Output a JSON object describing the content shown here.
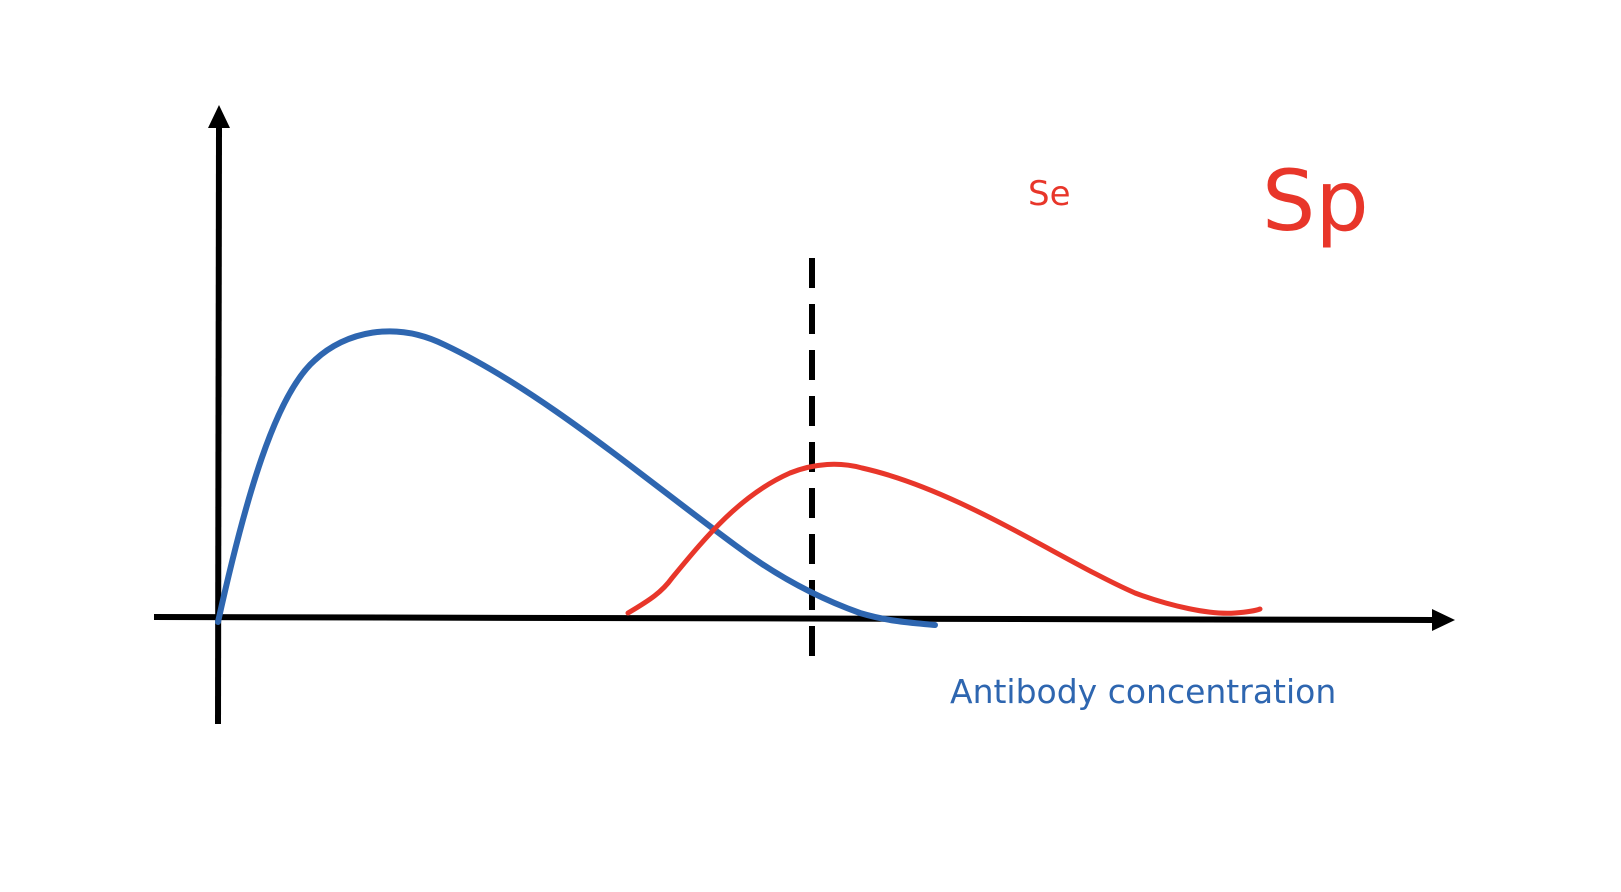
{
  "labels": {
    "se": "Se",
    "sp": "Sp",
    "x_axis": "Antibody concentration"
  },
  "colors": {
    "axis": "#000000",
    "blue_curve": "#2e66b0",
    "red_curve": "#e8362a",
    "se_text": "#e8362a",
    "sp_text": "#e8362a",
    "x_axis_text": "#2e66b0",
    "cutoff_line": "#000000"
  }
}
